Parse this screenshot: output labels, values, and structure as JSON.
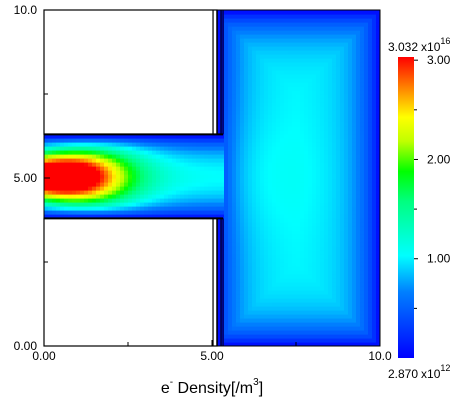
{
  "chart_data": {
    "type": "heatmap",
    "title": "",
    "xlabel": {
      "prefix": "e",
      "prefix_sup": "-",
      "main": " Density[/m",
      "main_sup": "3",
      "suffix": "]"
    },
    "ylabel": "",
    "xlim": [
      0.0,
      10.0
    ],
    "ylim": [
      0.0,
      10.0
    ],
    "x_tick_labels": [
      {
        "value": 0.0,
        "label": "0.00"
      },
      {
        "value": 5.0,
        "label": "5.00"
      },
      {
        "value": 10.0,
        "label": "10.0"
      }
    ],
    "y_tick_labels": [
      {
        "value": 0.0,
        "label": "0.00"
      },
      {
        "value": 5.0,
        "label": "5.00"
      },
      {
        "value": 10.0,
        "label": "10.0"
      }
    ],
    "colorbar": {
      "max_label": {
        "mantissa": "3.032",
        "times": "x10",
        "exponent": "16"
      },
      "min_label": {
        "mantissa": "2.870",
        "times": "x10",
        "exponent": "12"
      },
      "max_value": 3.032e+16,
      "min_value": 2870000000000.0,
      "ticks": [
        {
          "value": 3.0,
          "label": "3.00"
        },
        {
          "value": 2.0,
          "label": "2.00"
        },
        {
          "value": 1.0,
          "label": "1.00"
        }
      ],
      "colors": [
        "#0000ff",
        "#00ffff",
        "#00ff00",
        "#ffff00",
        "#ff0000"
      ]
    },
    "geometry_regions": [
      {
        "name": "upper-electrode-block",
        "x": [
          0.0,
          5.15
        ],
        "y": [
          6.3,
          10.0
        ]
      },
      {
        "name": "lower-electrode-block",
        "x": [
          0.0,
          5.15
        ],
        "y": [
          0.0,
          3.8
        ]
      }
    ],
    "channel": {
      "x": [
        0.0,
        5.3
      ],
      "y": [
        3.8,
        6.3
      ]
    },
    "chamber": {
      "x": [
        5.3,
        10.0
      ],
      "y": [
        0.0,
        10.0
      ]
    },
    "peak_location": {
      "x": 0.5,
      "y": 5.0
    }
  }
}
